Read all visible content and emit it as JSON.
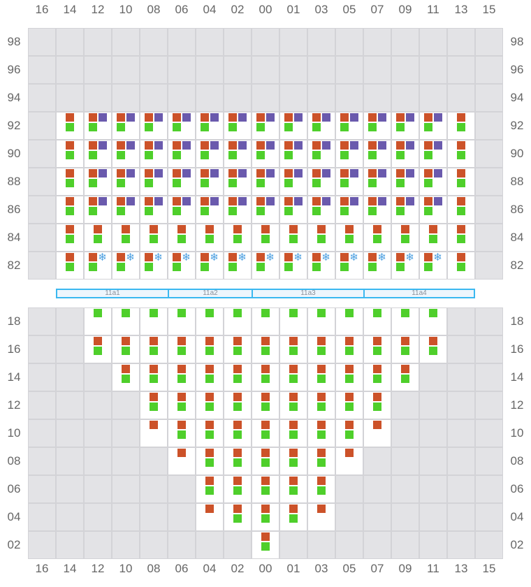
{
  "columns": [
    "16",
    "14",
    "12",
    "10",
    "08",
    "06",
    "04",
    "02",
    "00",
    "01",
    "03",
    "05",
    "07",
    "09",
    "11",
    "13",
    "15"
  ],
  "colors": {
    "orange": "#cc5229",
    "green": "#4fcf2b",
    "purple": "#6a5aad",
    "snowflake": "#4a9ee0",
    "unavailable": "#e3e3e6",
    "available": "#ffffff",
    "band_border": "#3bb8f0"
  },
  "legend_codes": {
    "O": "orange-square",
    "P": "purple-square",
    "S": "snowflake-icon",
    "G": "green-square",
    "x": "unavailable"
  },
  "top_section": {
    "rows": [
      {
        "label": "98",
        "cells": [
          "x",
          "x",
          "x",
          "x",
          "x",
          "x",
          "x",
          "x",
          "x",
          "x",
          "x",
          "x",
          "x",
          "x",
          "x",
          "x",
          "x"
        ]
      },
      {
        "label": "96",
        "cells": [
          "x",
          "x",
          "x",
          "x",
          "x",
          "x",
          "x",
          "x",
          "x",
          "x",
          "x",
          "x",
          "x",
          "x",
          "x",
          "x",
          "x"
        ]
      },
      {
        "label": "94",
        "cells": [
          "x",
          "x",
          "x",
          "x",
          "x",
          "x",
          "x",
          "x",
          "x",
          "x",
          "x",
          "x",
          "x",
          "x",
          "x",
          "x",
          "x"
        ]
      },
      {
        "label": "92",
        "cells": [
          "x",
          "OG",
          "OPG",
          "OPG",
          "OPG",
          "OPG",
          "OPG",
          "OPG",
          "OPG",
          "OPG",
          "OPG",
          "OPG",
          "OPG",
          "OPG",
          "OPG",
          "OG",
          "x"
        ]
      },
      {
        "label": "90",
        "cells": [
          "x",
          "OG",
          "OPG",
          "OPG",
          "OPG",
          "OPG",
          "OPG",
          "OPG",
          "OPG",
          "OPG",
          "OPG",
          "OPG",
          "OPG",
          "OPG",
          "OPG",
          "OG",
          "x"
        ]
      },
      {
        "label": "88",
        "cells": [
          "x",
          "OG",
          "OPG",
          "OPG",
          "OPG",
          "OPG",
          "OPG",
          "OPG",
          "OPG",
          "OPG",
          "OPG",
          "OPG",
          "OPG",
          "OPG",
          "OPG",
          "OG",
          "x"
        ]
      },
      {
        "label": "86",
        "cells": [
          "x",
          "OG",
          "OPG",
          "OPG",
          "OPG",
          "OPG",
          "OPG",
          "OPG",
          "OPG",
          "OPG",
          "OPG",
          "OPG",
          "OPG",
          "OPG",
          "OPG",
          "OG",
          "x"
        ]
      },
      {
        "label": "84",
        "cells": [
          "x",
          "OG",
          "OG",
          "OG",
          "OG",
          "OG",
          "OG",
          "OG",
          "OG",
          "OG",
          "OG",
          "OG",
          "OG",
          "OG",
          "OG",
          "OG",
          "x"
        ]
      },
      {
        "label": "82",
        "cells": [
          "x",
          "OG",
          "OSG",
          "OSG",
          "OSG",
          "OSG",
          "OSG",
          "OSG",
          "OSG",
          "OSG",
          "OSG",
          "OSG",
          "OSG",
          "OSG",
          "OSG",
          "OG",
          "x"
        ]
      }
    ]
  },
  "bands": [
    {
      "label": "11a1"
    },
    {
      "label": "11a2"
    },
    {
      "label": "11a3"
    },
    {
      "label": "11a4"
    }
  ],
  "bottom_section": {
    "rows": [
      {
        "label": "18",
        "cells": [
          "x",
          "x",
          "G",
          "G",
          "G",
          "G",
          "G",
          "G",
          "G",
          "G",
          "G",
          "G",
          "G",
          "G",
          "G",
          "x",
          "x"
        ]
      },
      {
        "label": "16",
        "cells": [
          "x",
          "x",
          "OG",
          "OG",
          "OG",
          "OG",
          "OG",
          "OG",
          "OG",
          "OG",
          "OG",
          "OG",
          "OG",
          "OG",
          "OG",
          "x",
          "x"
        ]
      },
      {
        "label": "14",
        "cells": [
          "x",
          "x",
          "x",
          "OG",
          "OG",
          "OG",
          "OG",
          "OG",
          "OG",
          "OG",
          "OG",
          "OG",
          "OG",
          "OG",
          "x",
          "x",
          "x"
        ]
      },
      {
        "label": "12",
        "cells": [
          "x",
          "x",
          "x",
          "x",
          "OG",
          "OG",
          "OG",
          "OG",
          "OG",
          "OG",
          "OG",
          "OG",
          "OG",
          "x",
          "x",
          "x",
          "x"
        ]
      },
      {
        "label": "10",
        "cells": [
          "x",
          "x",
          "x",
          "x",
          "O",
          "OG",
          "OG",
          "OG",
          "OG",
          "OG",
          "OG",
          "OG",
          "O",
          "x",
          "x",
          "x",
          "x"
        ]
      },
      {
        "label": "08",
        "cells": [
          "x",
          "x",
          "x",
          "x",
          "x",
          "O",
          "OG",
          "OG",
          "OG",
          "OG",
          "OG",
          "O",
          "x",
          "x",
          "x",
          "x",
          "x"
        ]
      },
      {
        "label": "06",
        "cells": [
          "x",
          "x",
          "x",
          "x",
          "x",
          "x",
          "OG",
          "OG",
          "OG",
          "OG",
          "OG",
          "x",
          "x",
          "x",
          "x",
          "x",
          "x"
        ]
      },
      {
        "label": "04",
        "cells": [
          "x",
          "x",
          "x",
          "x",
          "x",
          "x",
          "O",
          "OG",
          "OG",
          "OG",
          "O",
          "x",
          "x",
          "x",
          "x",
          "x",
          "x"
        ]
      },
      {
        "label": "02",
        "cells": [
          "x",
          "x",
          "x",
          "x",
          "x",
          "x",
          "x",
          "x",
          "OG",
          "x",
          "x",
          "x",
          "x",
          "x",
          "x",
          "x",
          "x"
        ]
      }
    ]
  }
}
